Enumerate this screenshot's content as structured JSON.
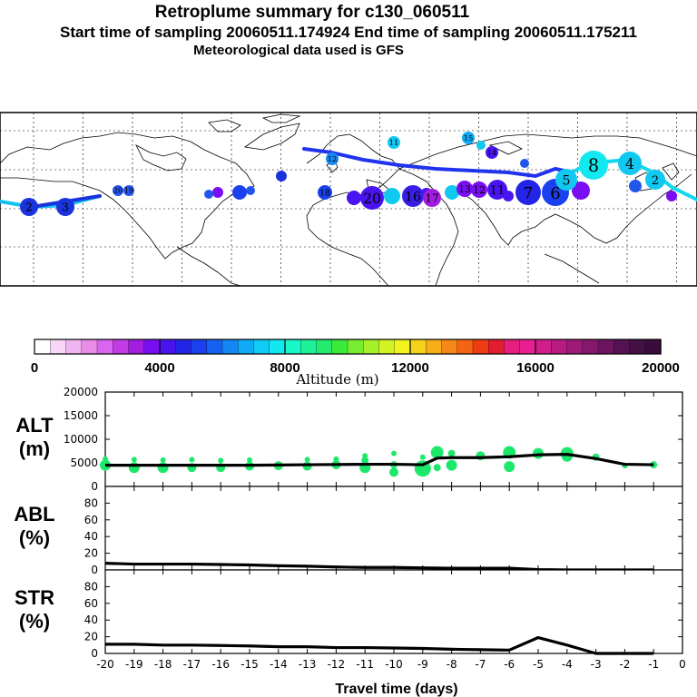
{
  "header": {
    "title": "Retroplume summary for c130_060511",
    "subtitle": "Start time of sampling 20060511.174924     End time of sampling 20060511.175211",
    "met": "Meteorological data used is GFS"
  },
  "colorbar": {
    "label": "Altitude (m)",
    "ticks": [
      "0",
      "4000",
      "8000",
      "12000",
      "16000",
      "20000"
    ],
    "colors": [
      "#ffffff",
      "#f7d6f7",
      "#f0b5f0",
      "#e88ce8",
      "#d966ef",
      "#c23de8",
      "#a11ee0",
      "#7a0ef2",
      "#4a14f0",
      "#2424e6",
      "#1a40f0",
      "#1760f0",
      "#1486f5",
      "#11aaf5",
      "#10ccf5",
      "#11e8f0",
      "#18f7c8",
      "#1ef09a",
      "#24ea70",
      "#3bea3b",
      "#77ec30",
      "#a6ef2a",
      "#d1f224",
      "#f2f21e",
      "#f5d21a",
      "#f5ae18",
      "#f58816",
      "#f56414",
      "#f03c12",
      "#e31e2e",
      "#e61e80",
      "#e8208f",
      "#d11e8a",
      "#b81b82",
      "#9e1a78",
      "#85176c",
      "#6b1560",
      "#541253",
      "#451045",
      "#3a0c3b"
    ]
  },
  "map_points": [
    {
      "label": "2",
      "color": "#1a33dd"
    },
    {
      "label": "3",
      "color": "#1a33dd"
    },
    {
      "label": "20",
      "color": "#2255ee"
    },
    {
      "label": "19",
      "color": "#2255ee"
    },
    {
      "label": "11",
      "color": "#11c8f0"
    },
    {
      "label": "12",
      "color": "#1688f0"
    },
    {
      "label": "18",
      "color": "#1a40f0"
    },
    {
      "label": "20",
      "color": "#4a14f0"
    },
    {
      "label": "16",
      "color": "#3a1ee8"
    },
    {
      "label": "17",
      "color": "#a11ee0"
    },
    {
      "label": "13",
      "color": "#7a0ef2"
    },
    {
      "label": "12",
      "color": "#7a0ef2"
    },
    {
      "label": "11",
      "color": "#4a14f0"
    },
    {
      "label": "7",
      "color": "#2424e6"
    },
    {
      "label": "6",
      "color": "#1a40f0"
    },
    {
      "label": "5",
      "color": "#11c8f0"
    },
    {
      "label": "8",
      "color": "#11e8f0"
    },
    {
      "label": "4",
      "color": "#11c8f0"
    },
    {
      "label": "2",
      "color": "#11c8f0"
    },
    {
      "label": "15",
      "color": "#11aaf5"
    },
    {
      "label": "14",
      "color": "#4a14f0"
    }
  ],
  "chart_data": [
    {
      "type": "line",
      "panel": "ALT",
      "ylabel": "ALT\n(m)",
      "xlabel": "Travel time (days)",
      "ylim": [
        0,
        20000
      ],
      "yticks": [
        "20000",
        "15000",
        "10000",
        "5000",
        "0"
      ],
      "x": [
        -20,
        -19,
        -18,
        -17,
        -16,
        -15,
        -14,
        -13,
        -12,
        -11,
        -10,
        -9,
        -8.5,
        -8,
        -7,
        -6,
        -5,
        -4,
        -3,
        -2,
        -1
      ],
      "values": [
        4500,
        4500,
        4500,
        4500,
        4500,
        4500,
        4550,
        4600,
        4650,
        4700,
        4700,
        4600,
        6000,
        6100,
        6100,
        6300,
        6700,
        6800,
        5900,
        4700,
        4600
      ],
      "scatter": [
        {
          "x": -20,
          "y": 4500,
          "s": 6
        },
        {
          "x": -20,
          "y": 5800,
          "s": 3
        },
        {
          "x": -19,
          "y": 4000,
          "s": 6
        },
        {
          "x": -19,
          "y": 5700,
          "s": 3
        },
        {
          "x": -18,
          "y": 4000,
          "s": 6
        },
        {
          "x": -18,
          "y": 5600,
          "s": 3
        },
        {
          "x": -17,
          "y": 4000,
          "s": 5
        },
        {
          "x": -17,
          "y": 5700,
          "s": 3
        },
        {
          "x": -16,
          "y": 4000,
          "s": 5
        },
        {
          "x": -16,
          "y": 5500,
          "s": 3
        },
        {
          "x": -15,
          "y": 4300,
          "s": 5
        },
        {
          "x": -15,
          "y": 5600,
          "s": 3
        },
        {
          "x": -14,
          "y": 4400,
          "s": 5
        },
        {
          "x": -13,
          "y": 4300,
          "s": 5
        },
        {
          "x": -13,
          "y": 5700,
          "s": 3
        },
        {
          "x": -12,
          "y": 4600,
          "s": 5
        },
        {
          "x": -12,
          "y": 5800,
          "s": 3
        },
        {
          "x": -11,
          "y": 4000,
          "s": 6
        },
        {
          "x": -11,
          "y": 5500,
          "s": 4
        },
        {
          "x": -11,
          "y": 6500,
          "s": 3
        },
        {
          "x": -10,
          "y": 3000,
          "s": 5
        },
        {
          "x": -10,
          "y": 4600,
          "s": 4
        },
        {
          "x": -10,
          "y": 7000,
          "s": 3
        },
        {
          "x": -9,
          "y": 3800,
          "s": 9
        },
        {
          "x": -9,
          "y": 6200,
          "s": 3
        },
        {
          "x": -8.5,
          "y": 7200,
          "s": 7
        },
        {
          "x": -8.5,
          "y": 4000,
          "s": 4
        },
        {
          "x": -8,
          "y": 4500,
          "s": 6
        },
        {
          "x": -8,
          "y": 7000,
          "s": 4
        },
        {
          "x": -7,
          "y": 6500,
          "s": 5
        },
        {
          "x": -6,
          "y": 7200,
          "s": 7
        },
        {
          "x": -6,
          "y": 4200,
          "s": 6
        },
        {
          "x": -5,
          "y": 7000,
          "s": 6
        },
        {
          "x": -4,
          "y": 7000,
          "s": 7
        },
        {
          "x": -4,
          "y": 6400,
          "s": 6
        },
        {
          "x": -3,
          "y": 6200,
          "s": 4
        },
        {
          "x": -2,
          "y": 4400,
          "s": 3
        },
        {
          "x": -1,
          "y": 4600,
          "s": 4
        }
      ]
    },
    {
      "type": "line",
      "panel": "ABL",
      "ylabel": "ABL\n(%)",
      "ylim": [
        0,
        100
      ],
      "yticks": [
        "80",
        "60",
        "40",
        "20",
        "0"
      ],
      "x": [
        -20,
        -19,
        -18,
        -17,
        -16,
        -15,
        -14,
        -13,
        -12,
        -11,
        -10,
        -9,
        -8,
        -7,
        -6,
        -5,
        -4,
        -3,
        -2,
        -1
      ],
      "values": [
        8,
        7,
        7,
        7,
        6.5,
        6,
        5,
        4.5,
        3.5,
        3,
        3,
        2.5,
        2,
        2,
        2,
        0.5,
        0,
        0,
        0,
        0
      ]
    },
    {
      "type": "line",
      "panel": "STR",
      "ylabel": "STR\n(%)",
      "ylim": [
        0,
        100
      ],
      "yticks": [
        "80",
        "60",
        "40",
        "20",
        "0"
      ],
      "x": [
        -20,
        -19,
        -18,
        -17,
        -16,
        -15,
        -14,
        -13,
        -12,
        -11,
        -10,
        -9,
        -8,
        -7,
        -6,
        -5,
        -4,
        -3,
        -2,
        -1
      ],
      "values": [
        11,
        11,
        10,
        10,
        9.5,
        9,
        8,
        8,
        7,
        7,
        6.5,
        6,
        5,
        4.5,
        4,
        19,
        10,
        0,
        0,
        0
      ],
      "xticks": [
        "-20",
        "-19",
        "-18",
        "-17",
        "-16",
        "-15",
        "-14",
        "-13",
        "-12",
        "-11",
        "-10",
        "-9",
        "-8",
        "-7",
        "-6",
        "-5",
        "-4",
        "-3",
        "-2",
        "-1",
        "0"
      ]
    }
  ]
}
